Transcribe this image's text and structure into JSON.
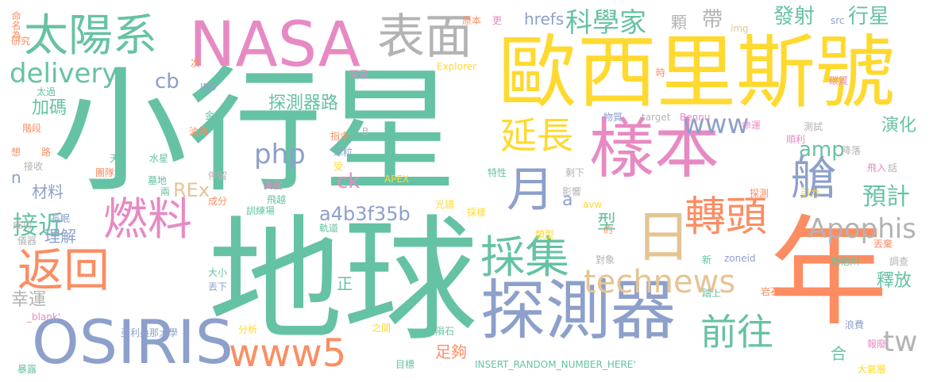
{
  "palette": {
    "green": "#66c2a5",
    "orange": "#fc8d62",
    "blue": "#8da0cb",
    "pink": "#e78ac3",
    "lime": "#a6d854",
    "yellow": "#ffd92f",
    "tan": "#e5c494",
    "gray": "#b3b3b3"
  },
  "words": [
    "小行星",
    "地球",
    "歐西里斯號",
    "樣本",
    "年",
    "探測器",
    "NASA",
    "太陽系",
    "OSIRIS",
    "返回",
    "燃料",
    "表面",
    "月",
    "日",
    "轉頭",
    "採集",
    "艙",
    "www5",
    "technews",
    "Apophis",
    "延長",
    "前往",
    "www",
    "delivery",
    "科學家",
    "php",
    "amp",
    "tw",
    "預計",
    "a4b3f35b",
    "接近",
    "發射",
    "行星",
    "帶",
    "顆",
    "hrefs",
    "cb",
    "探測器路",
    "加碼",
    "型",
    "演化",
    "釋放",
    "ck",
    "正",
    "a",
    "幸運",
    "理解",
    "材料",
    "REx",
    "足夠",
    "合",
    "n",
    "命名為",
    "研究",
    "太過",
    "階段",
    "想",
    "路",
    "接收",
    "成功",
    "儀器",
    "長眠",
    "_blank'",
    "暴露",
    "亞利桑那大學",
    "INS",
    "金星",
    "油箱",
    "水星",
    "天",
    "團隊",
    "墓地",
    "兩",
    "停留",
    "成分",
    "美國",
    "飛越",
    "訓練場",
    "軌道",
    "大小",
    "丟下",
    "分析",
    "之間",
    "隕石",
    "目標",
    "INSERT_RANDOM_NUMBER_HERE'",
    "光譜",
    "採樣",
    "類型",
    "約",
    "avw",
    "原本",
    "更",
    "img",
    "src",
    "次",
    "Explorer",
    "罕見",
    "時",
    "S",
    "target",
    "Bennu",
    "物質",
    "B",
    "指令",
    "球粒",
    "受",
    "APEX",
    "特性",
    "剩下",
    "影響",
    "新",
    "zoneid",
    "對象",
    "踏上",
    "岩石",
    "浪費",
    "報廢",
    "大氣層",
    "順利",
    "測試",
    "命運",
    "碳質",
    "引力",
    "飛入",
    "話",
    "降落",
    "丟棄",
    "猶他州",
    "調查",
    "探測"
  ]
}
